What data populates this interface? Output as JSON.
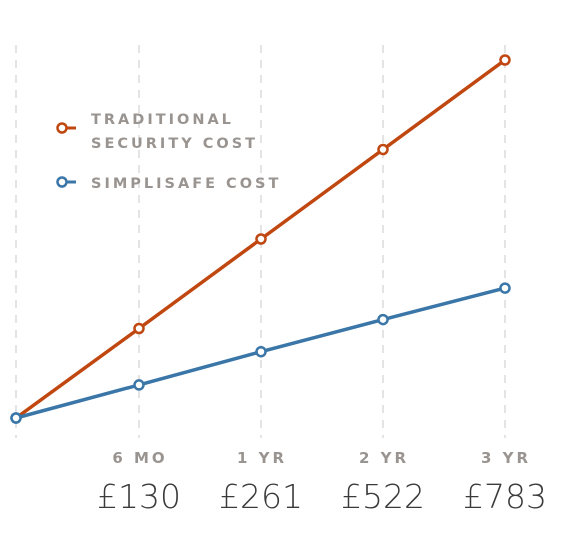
{
  "chart_data": {
    "type": "line",
    "x": [
      "",
      "6 MO",
      "1 YR",
      "2 YR",
      "3 YR"
    ],
    "price_labels": [
      "£130",
      "£261",
      "£522",
      "£783"
    ],
    "series": [
      {
        "name": "TRADITIONAL SECURITY COST",
        "legend_lines": [
          "TRADITIONAL",
          "SECURITY COST"
        ],
        "color": "#c0470f",
        "values": [
          0,
          270,
          540,
          810,
          1080
        ]
      },
      {
        "name": "SIMPLISAFE COST",
        "legend_lines": [
          "SIMPLISAFE COST"
        ],
        "color": "#3a76a8",
        "values": [
          0,
          100,
          200,
          297,
          392
        ]
      }
    ],
    "ylim": [
      0,
      1080
    ],
    "grid": true,
    "legend": "top-left"
  }
}
